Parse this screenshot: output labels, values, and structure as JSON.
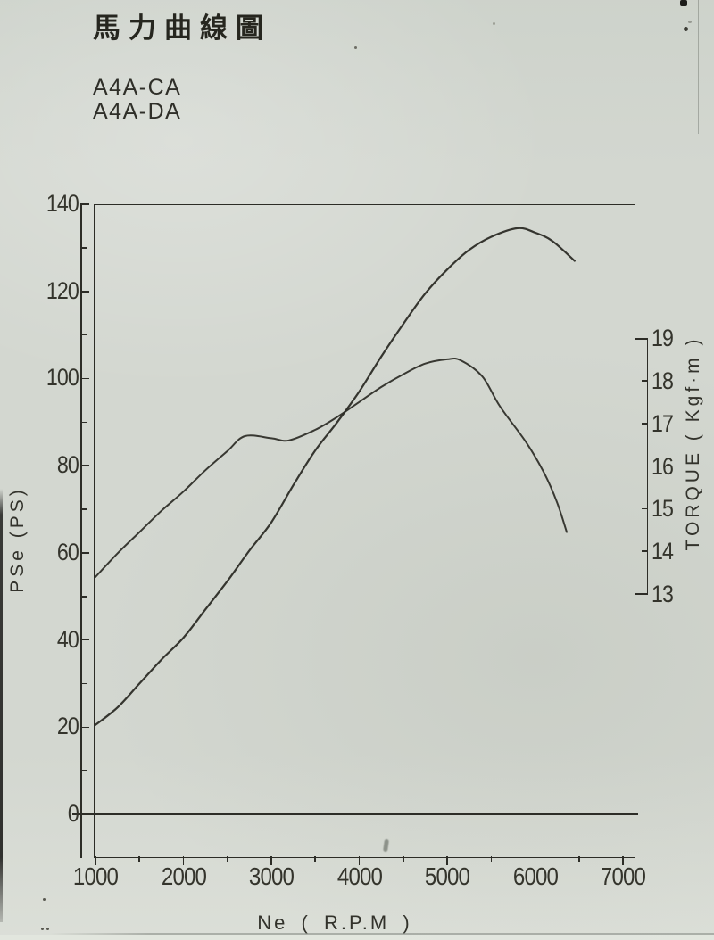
{
  "header": {
    "title": "馬力曲線圖",
    "model_1": "A4A-CA",
    "model_2": "A4A-DA"
  },
  "chart_data": {
    "type": "line",
    "title": "馬力曲線圖",
    "models": [
      "A4A-CA",
      "A4A-DA"
    ],
    "grid": false,
    "legend": "none",
    "x_axis": {
      "label": "Ne ( R.P.M )",
      "min": 1000,
      "max": 7000,
      "major_ticks": [
        1000,
        2000,
        3000,
        4000,
        5000,
        6000,
        7000
      ],
      "minor_tick_step": 500
    },
    "y_axis_left": {
      "label": "PSe (PS)",
      "min": 0,
      "max": 140,
      "major_ticks": [
        0,
        20,
        40,
        60,
        80,
        100,
        120,
        140
      ],
      "minor_tick_step": 10
    },
    "y_axis_right": {
      "label": "TORQUE ( Kgf·m )",
      "min": 13,
      "max": 19,
      "ticks": [
        13,
        14,
        15,
        16,
        17,
        18,
        19
      ]
    },
    "series": [
      {
        "name": "power-PSe",
        "axis": "left",
        "unit": "PS",
        "x": [
          1000,
          1250,
          1500,
          1750,
          2000,
          2250,
          2500,
          2750,
          3000,
          3250,
          3500,
          3750,
          4000,
          4250,
          4500,
          4750,
          5000,
          5250,
          5500,
          5800,
          6000,
          6200,
          6450
        ],
        "values": [
          20.5,
          24.5,
          30,
          35.5,
          40.5,
          47,
          53.5,
          60.5,
          67,
          75.5,
          83.5,
          90,
          97,
          105,
          112.5,
          119.5,
          125,
          129.5,
          132.5,
          134.5,
          133.5,
          131.5,
          127
        ]
      },
      {
        "name": "torque",
        "axis": "right",
        "unit": "Kgf·m",
        "x": [
          1000,
          1250,
          1500,
          1750,
          2000,
          2250,
          2500,
          2700,
          3000,
          3200,
          3500,
          3750,
          4000,
          4250,
          4500,
          4750,
          5000,
          5150,
          5400,
          5600,
          5900,
          6100,
          6250,
          6360
        ],
        "values": [
          13.4,
          13.95,
          14.45,
          14.95,
          15.4,
          15.9,
          16.35,
          16.7,
          16.65,
          16.6,
          16.85,
          17.15,
          17.5,
          17.85,
          18.15,
          18.4,
          18.5,
          18.48,
          18.1,
          17.4,
          16.55,
          15.85,
          15.15,
          14.45
        ]
      }
    ]
  }
}
